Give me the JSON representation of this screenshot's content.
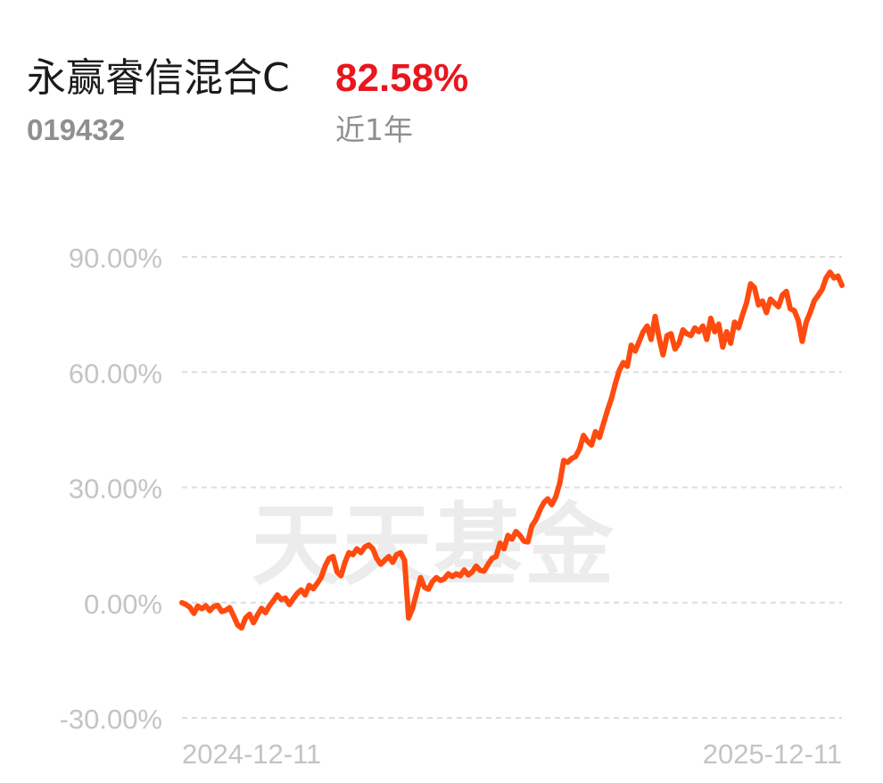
{
  "fund": {
    "name": "永赢睿信混合C",
    "code": "019432",
    "return": "82.58%",
    "period": "近1年"
  },
  "watermark": "天天基金",
  "colors": {
    "line": "#ff4b0f",
    "return": "#e8161e",
    "grid": "#dddddd",
    "tick": "#c4c4c4"
  },
  "chart_data": {
    "type": "line",
    "title": "",
    "xlabel": "",
    "ylabel": "",
    "ylim": [
      -30,
      90
    ],
    "yticks": [
      90,
      60,
      30,
      0,
      -30
    ],
    "ytick_labels": [
      "90.00%",
      "60.00%",
      "30.00%",
      "0.00%",
      "-30.00%"
    ],
    "xtick_labels": [
      "2024-12-11",
      "2025-12-11"
    ],
    "grid": true,
    "series": [
      {
        "values": [
          0.0,
          -0.5,
          -1.2,
          -2.8,
          -0.9,
          -1.6,
          -0.8,
          -2.1,
          -1.0,
          -0.7,
          -2.3,
          -2.0,
          -1.3,
          -3.5,
          -5.8,
          -6.6,
          -4.0,
          -3.0,
          -5.2,
          -3.2,
          -1.5,
          -2.6,
          -0.8,
          0.5,
          2.0,
          0.8,
          1.2,
          -0.5,
          1.0,
          2.4,
          3.3,
          2.0,
          4.5,
          3.6,
          5.0,
          6.5,
          9.5,
          11.5,
          12.0,
          8.0,
          7.0,
          10.5,
          13.0,
          12.5,
          14.0,
          13.0,
          14.5,
          15.0,
          14.0,
          11.5,
          10.0,
          11.0,
          12.0,
          10.5,
          12.5,
          13.0,
          11.0,
          -4.0,
          -1.5,
          2.5,
          6.5,
          4.0,
          3.5,
          5.5,
          6.5,
          5.8,
          6.2,
          7.5,
          6.8,
          7.5,
          7.0,
          8.5,
          7.2,
          8.0,
          9.5,
          8.4,
          8.2,
          10.0,
          11.5,
          12.0,
          15.5,
          14.0,
          17.5,
          16.5,
          18.5,
          17.5,
          16.0,
          15.8,
          20.0,
          21.5,
          24.0,
          26.0,
          27.0,
          25.5,
          27.5,
          31.0,
          37.0,
          36.5,
          37.5,
          38.0,
          40.0,
          43.5,
          42.0,
          41.0,
          44.5,
          43.0,
          46.5,
          50.0,
          53.0,
          57.0,
          60.5,
          62.5,
          61.5,
          67.0,
          65.5,
          68.0,
          70.5,
          72.0,
          68.5,
          74.5,
          69.0,
          64.5,
          69.5,
          70.0,
          66.0,
          67.5,
          71.0,
          70.0,
          69.5,
          71.5,
          70.5,
          72.0,
          68.5,
          74.0,
          70.5,
          72.5,
          66.5,
          70.5,
          67.5,
          73.0,
          71.5,
          75.0,
          78.0,
          83.0,
          82.0,
          77.5,
          78.5,
          75.5,
          79.0,
          78.0,
          77.0,
          80.0,
          81.0,
          76.5,
          76.0,
          73.5,
          68.0,
          73.0,
          75.5,
          78.5,
          80.0,
          81.5,
          84.5,
          86.0,
          84.5,
          85.0,
          82.58
        ]
      }
    ]
  }
}
